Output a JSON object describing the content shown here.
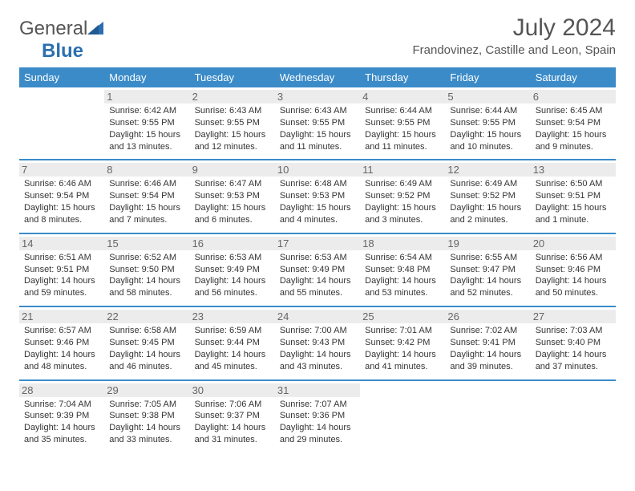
{
  "brand": {
    "general": "General",
    "blue": "Blue"
  },
  "title": "July 2024",
  "location": "Frandovinez, Castille and Leon, Spain",
  "headers": [
    "Sunday",
    "Monday",
    "Tuesday",
    "Wednesday",
    "Thursday",
    "Friday",
    "Saturday"
  ],
  "style": {
    "header_bg": "#3b8bc8",
    "header_fg": "#ffffff",
    "row_divider": "#3b8bc8",
    "daynum_bg": "#ececec",
    "text_color": "#333333",
    "title_color": "#555555",
    "page_bg": "#ffffff",
    "header_fontsize": 13,
    "title_fontsize": 30,
    "location_fontsize": 15,
    "cell_fontsize": 11,
    "logo_accent": "#2c6fb0"
  },
  "weeks": [
    [
      null,
      {
        "n": "1",
        "sr": "Sunrise: 6:42 AM",
        "ss": "Sunset: 9:55 PM",
        "d1": "Daylight: 15 hours",
        "d2": "and 13 minutes."
      },
      {
        "n": "2",
        "sr": "Sunrise: 6:43 AM",
        "ss": "Sunset: 9:55 PM",
        "d1": "Daylight: 15 hours",
        "d2": "and 12 minutes."
      },
      {
        "n": "3",
        "sr": "Sunrise: 6:43 AM",
        "ss": "Sunset: 9:55 PM",
        "d1": "Daylight: 15 hours",
        "d2": "and 11 minutes."
      },
      {
        "n": "4",
        "sr": "Sunrise: 6:44 AM",
        "ss": "Sunset: 9:55 PM",
        "d1": "Daylight: 15 hours",
        "d2": "and 11 minutes."
      },
      {
        "n": "5",
        "sr": "Sunrise: 6:44 AM",
        "ss": "Sunset: 9:55 PM",
        "d1": "Daylight: 15 hours",
        "d2": "and 10 minutes."
      },
      {
        "n": "6",
        "sr": "Sunrise: 6:45 AM",
        "ss": "Sunset: 9:54 PM",
        "d1": "Daylight: 15 hours",
        "d2": "and 9 minutes."
      }
    ],
    [
      {
        "n": "7",
        "sr": "Sunrise: 6:46 AM",
        "ss": "Sunset: 9:54 PM",
        "d1": "Daylight: 15 hours",
        "d2": "and 8 minutes."
      },
      {
        "n": "8",
        "sr": "Sunrise: 6:46 AM",
        "ss": "Sunset: 9:54 PM",
        "d1": "Daylight: 15 hours",
        "d2": "and 7 minutes."
      },
      {
        "n": "9",
        "sr": "Sunrise: 6:47 AM",
        "ss": "Sunset: 9:53 PM",
        "d1": "Daylight: 15 hours",
        "d2": "and 6 minutes."
      },
      {
        "n": "10",
        "sr": "Sunrise: 6:48 AM",
        "ss": "Sunset: 9:53 PM",
        "d1": "Daylight: 15 hours",
        "d2": "and 4 minutes."
      },
      {
        "n": "11",
        "sr": "Sunrise: 6:49 AM",
        "ss": "Sunset: 9:52 PM",
        "d1": "Daylight: 15 hours",
        "d2": "and 3 minutes."
      },
      {
        "n": "12",
        "sr": "Sunrise: 6:49 AM",
        "ss": "Sunset: 9:52 PM",
        "d1": "Daylight: 15 hours",
        "d2": "and 2 minutes."
      },
      {
        "n": "13",
        "sr": "Sunrise: 6:50 AM",
        "ss": "Sunset: 9:51 PM",
        "d1": "Daylight: 15 hours",
        "d2": "and 1 minute."
      }
    ],
    [
      {
        "n": "14",
        "sr": "Sunrise: 6:51 AM",
        "ss": "Sunset: 9:51 PM",
        "d1": "Daylight: 14 hours",
        "d2": "and 59 minutes."
      },
      {
        "n": "15",
        "sr": "Sunrise: 6:52 AM",
        "ss": "Sunset: 9:50 PM",
        "d1": "Daylight: 14 hours",
        "d2": "and 58 minutes."
      },
      {
        "n": "16",
        "sr": "Sunrise: 6:53 AM",
        "ss": "Sunset: 9:49 PM",
        "d1": "Daylight: 14 hours",
        "d2": "and 56 minutes."
      },
      {
        "n": "17",
        "sr": "Sunrise: 6:53 AM",
        "ss": "Sunset: 9:49 PM",
        "d1": "Daylight: 14 hours",
        "d2": "and 55 minutes."
      },
      {
        "n": "18",
        "sr": "Sunrise: 6:54 AM",
        "ss": "Sunset: 9:48 PM",
        "d1": "Daylight: 14 hours",
        "d2": "and 53 minutes."
      },
      {
        "n": "19",
        "sr": "Sunrise: 6:55 AM",
        "ss": "Sunset: 9:47 PM",
        "d1": "Daylight: 14 hours",
        "d2": "and 52 minutes."
      },
      {
        "n": "20",
        "sr": "Sunrise: 6:56 AM",
        "ss": "Sunset: 9:46 PM",
        "d1": "Daylight: 14 hours",
        "d2": "and 50 minutes."
      }
    ],
    [
      {
        "n": "21",
        "sr": "Sunrise: 6:57 AM",
        "ss": "Sunset: 9:46 PM",
        "d1": "Daylight: 14 hours",
        "d2": "and 48 minutes."
      },
      {
        "n": "22",
        "sr": "Sunrise: 6:58 AM",
        "ss": "Sunset: 9:45 PM",
        "d1": "Daylight: 14 hours",
        "d2": "and 46 minutes."
      },
      {
        "n": "23",
        "sr": "Sunrise: 6:59 AM",
        "ss": "Sunset: 9:44 PM",
        "d1": "Daylight: 14 hours",
        "d2": "and 45 minutes."
      },
      {
        "n": "24",
        "sr": "Sunrise: 7:00 AM",
        "ss": "Sunset: 9:43 PM",
        "d1": "Daylight: 14 hours",
        "d2": "and 43 minutes."
      },
      {
        "n": "25",
        "sr": "Sunrise: 7:01 AM",
        "ss": "Sunset: 9:42 PM",
        "d1": "Daylight: 14 hours",
        "d2": "and 41 minutes."
      },
      {
        "n": "26",
        "sr": "Sunrise: 7:02 AM",
        "ss": "Sunset: 9:41 PM",
        "d1": "Daylight: 14 hours",
        "d2": "and 39 minutes."
      },
      {
        "n": "27",
        "sr": "Sunrise: 7:03 AM",
        "ss": "Sunset: 9:40 PM",
        "d1": "Daylight: 14 hours",
        "d2": "and 37 minutes."
      }
    ],
    [
      {
        "n": "28",
        "sr": "Sunrise: 7:04 AM",
        "ss": "Sunset: 9:39 PM",
        "d1": "Daylight: 14 hours",
        "d2": "and 35 minutes."
      },
      {
        "n": "29",
        "sr": "Sunrise: 7:05 AM",
        "ss": "Sunset: 9:38 PM",
        "d1": "Daylight: 14 hours",
        "d2": "and 33 minutes."
      },
      {
        "n": "30",
        "sr": "Sunrise: 7:06 AM",
        "ss": "Sunset: 9:37 PM",
        "d1": "Daylight: 14 hours",
        "d2": "and 31 minutes."
      },
      {
        "n": "31",
        "sr": "Sunrise: 7:07 AM",
        "ss": "Sunset: 9:36 PM",
        "d1": "Daylight: 14 hours",
        "d2": "and 29 minutes."
      },
      null,
      null,
      null
    ]
  ]
}
